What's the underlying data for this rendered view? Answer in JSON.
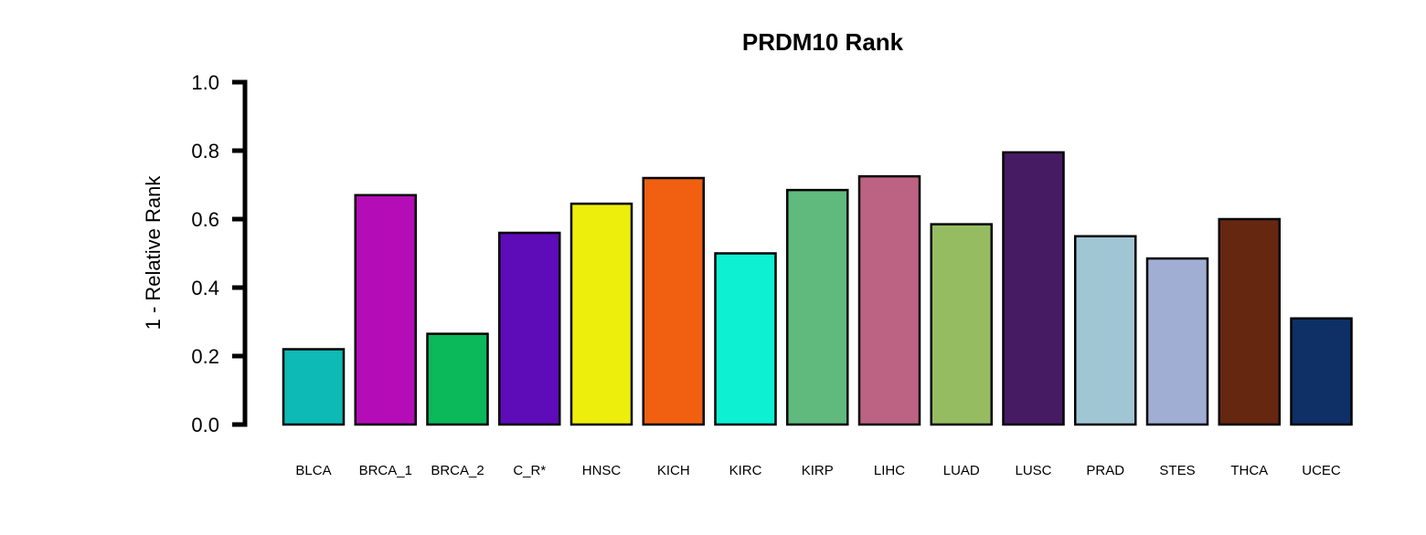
{
  "chart_data": {
    "type": "bar",
    "title": "PRDM10 Rank",
    "xlabel": "",
    "ylabel": "1 - Relative Rank",
    "ylim": [
      0,
      1
    ],
    "yticks": [
      "0.0",
      "0.2",
      "0.4",
      "0.6",
      "0.8",
      "1.0"
    ],
    "categories": [
      "BLCA",
      "BRCA_1",
      "BRCA_2",
      "C_R*",
      "HNSC",
      "KICH",
      "KIRC",
      "KIRP",
      "LIHC",
      "LUAD",
      "LUSC",
      "PRAD",
      "STES",
      "THCA",
      "UCEC"
    ],
    "values": [
      0.22,
      0.67,
      0.265,
      0.56,
      0.645,
      0.72,
      0.5,
      0.685,
      0.725,
      0.585,
      0.795,
      0.55,
      0.485,
      0.6,
      0.31
    ],
    "colors": [
      "#0DBAB5",
      "#B40DB7",
      "#0BB85A",
      "#5E0BB8",
      "#EEEE0D",
      "#F06010",
      "#0DF0D2",
      "#60BA7E",
      "#BC6282",
      "#96BC62",
      "#471B63",
      "#A0C6D4",
      "#A0AED4",
      "#662711",
      "#0E3066"
    ],
    "grid": false,
    "legend": "none"
  }
}
